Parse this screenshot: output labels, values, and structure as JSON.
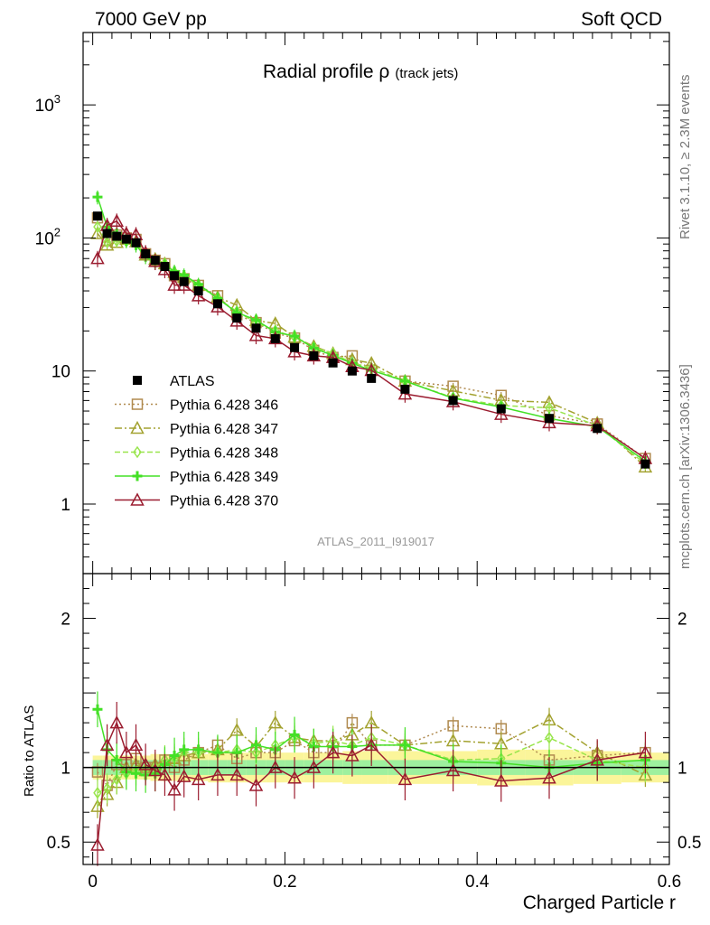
{
  "header": {
    "left": "7000 GeV pp",
    "right": "Soft QCD"
  },
  "side": {
    "top": "Rivet 3.1.10, ≥ 2.3M events",
    "bottom": "mcplots.cern.ch [arXiv:1306.3436]"
  },
  "chart_data": {
    "type": "line",
    "title_main": "Radial profile ρ",
    "title_sub": "(track jets)",
    "analysis_label": "ATLAS_2011_I919017",
    "xlabel": "Charged Particle r",
    "ylabel_ratio": "Ratio to ATLAS",
    "xlim": [
      -0.01,
      0.6
    ],
    "ylim_main": [
      0.3,
      3500
    ],
    "ylim_ratio": [
      0.35,
      2.3
    ],
    "y_scale_main": "log",
    "x_ticks": [
      "0",
      "0.2",
      "0.4",
      "0.6"
    ],
    "y_ticks_main": [
      {
        "label": "1",
        "value": 1
      },
      {
        "label": "10",
        "value": 10
      },
      {
        "label": "10",
        "sup": "2",
        "value": 100
      },
      {
        "label": "10",
        "sup": "3",
        "value": 1000
      }
    ],
    "y_ticks_ratio": [
      {
        "label": "0.5",
        "value": 0.5
      },
      {
        "label": "1",
        "value": 1
      },
      {
        "label": "2",
        "value": 2
      }
    ],
    "legend_position": "left-middle",
    "x": [
      0.005,
      0.015,
      0.025,
      0.035,
      0.045,
      0.055,
      0.065,
      0.075,
      0.085,
      0.095,
      0.11,
      0.13,
      0.15,
      0.17,
      0.19,
      0.21,
      0.23,
      0.25,
      0.27,
      0.29,
      0.325,
      0.375,
      0.425,
      0.475,
      0.525,
      0.575
    ],
    "data": {
      "name": "ATLAS",
      "values": [
        146,
        108,
        103,
        98,
        92,
        76,
        68,
        61,
        52,
        47,
        40,
        32,
        25,
        21,
        17.5,
        15,
        13,
        11.5,
        10,
        8.8,
        7.3,
        6,
        5.2,
        4.4,
        3.7,
        2.0
      ],
      "band_inner": [
        0.05,
        0.05,
        0.05,
        0.05,
        0.05,
        0.05,
        0.05,
        0.05,
        0.05,
        0.05,
        0.05,
        0.05,
        0.05,
        0.05,
        0.05,
        0.05,
        0.05,
        0.05,
        0.05,
        0.05,
        0.05,
        0.05,
        0.05,
        0.05,
        0.05,
        0.05
      ],
      "band_outer": [
        0.08,
        0.08,
        0.08,
        0.08,
        0.08,
        0.08,
        0.09,
        0.09,
        0.09,
        0.09,
        0.09,
        0.1,
        0.1,
        0.1,
        0.1,
        0.1,
        0.1,
        0.1,
        0.11,
        0.11,
        0.11,
        0.11,
        0.12,
        0.12,
        0.11,
        0.1
      ]
    },
    "series": [
      {
        "name": "Pythia 6.428 346",
        "color": "#b08a4f",
        "dash": "2,3",
        "marker": "square",
        "ratio": [
          0.97,
          0.88,
          1.02,
          1.02,
          1.06,
          1.0,
          1.0,
          1.05,
          1.0,
          1.05,
          1.1,
          1.15,
          1.06,
          1.1,
          1.1,
          1.18,
          1.1,
          1.1,
          1.3,
          1.15,
          1.15,
          1.28,
          1.26,
          1.05,
          1.08,
          1.1
        ]
      },
      {
        "name": "Pythia 6.428 347",
        "color": "#a3a230",
        "dash": "8,3,2,3",
        "marker": "triangle",
        "ratio": [
          0.74,
          0.82,
          0.9,
          1.0,
          1.02,
          0.98,
          1.02,
          1.05,
          1.06,
          1.08,
          1.1,
          1.12,
          1.25,
          1.14,
          1.3,
          1.2,
          1.18,
          1.18,
          1.22,
          1.3,
          1.15,
          1.18,
          1.16,
          1.32,
          1.1,
          0.95
        ]
      },
      {
        "name": "Pythia 6.428 348",
        "color": "#99e54d",
        "dash": "6,3",
        "marker": "diamond",
        "ratio": [
          0.83,
          0.86,
          0.92,
          0.96,
          0.98,
          0.99,
          1.0,
          1.05,
          1.06,
          1.1,
          1.1,
          1.1,
          1.12,
          1.1,
          1.15,
          1.2,
          1.16,
          1.18,
          1.15,
          1.2,
          1.15,
          1.05,
          1.06,
          1.2,
          1.05,
          1.0
        ]
      },
      {
        "name": "Pythia 6.428 349",
        "color": "#44e026",
        "dash": "",
        "marker": "cross",
        "ratio": [
          1.39,
          1.12,
          1.05,
          0.97,
          0.96,
          0.95,
          0.96,
          1.02,
          1.08,
          1.12,
          1.12,
          1.1,
          1.1,
          1.15,
          1.12,
          1.22,
          1.14,
          1.14,
          1.14,
          1.15,
          1.15,
          1.04,
          1.03,
          1.0,
          1.03,
          1.05
        ]
      },
      {
        "name": "Pythia 6.428 370",
        "color": "#9b1d30",
        "dash": "",
        "marker": "triangle",
        "ratio": [
          0.48,
          1.15,
          1.3,
          1.1,
          1.15,
          1.02,
          0.98,
          0.95,
          0.85,
          0.94,
          0.92,
          0.95,
          0.95,
          0.88,
          1.0,
          0.93,
          1.0,
          1.1,
          1.08,
          1.15,
          0.92,
          0.98,
          0.91,
          0.93,
          1.05,
          1.1
        ]
      }
    ]
  }
}
